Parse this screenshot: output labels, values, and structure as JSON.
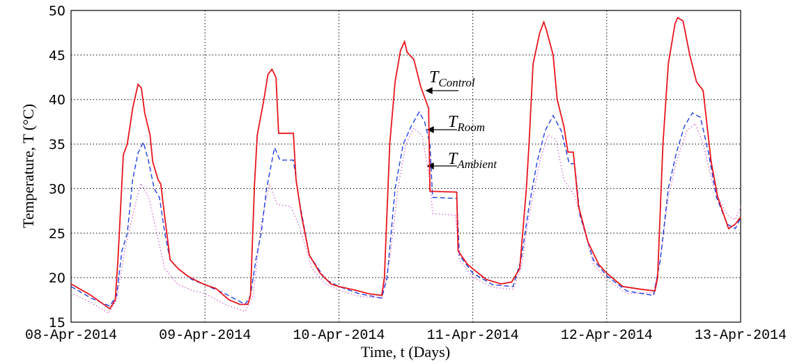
{
  "chart_data": {
    "type": "line",
    "xlabel": "Time, t (Days)",
    "ylabel": "Temperature, T (°C)",
    "xlim": [
      0,
      5
    ],
    "ylim": [
      15,
      50
    ],
    "xticks": [
      {
        "value": 0,
        "label": "08-Apr-2014"
      },
      {
        "value": 1,
        "label": "09-Apr-2014"
      },
      {
        "value": 2,
        "label": "10-Apr-2014"
      },
      {
        "value": 3,
        "label": "11-Apr-2014"
      },
      {
        "value": 4,
        "label": "12-Apr-2014"
      },
      {
        "value": 5,
        "label": "13-Apr-2014"
      }
    ],
    "yticks": [
      15,
      20,
      25,
      30,
      35,
      40,
      45,
      50
    ],
    "grid": true,
    "annotations": [
      {
        "symbol": "T",
        "subscript": "Control"
      },
      {
        "symbol": "T",
        "subscript": "Room"
      },
      {
        "symbol": "T",
        "subscript": "Ambient"
      }
    ],
    "series": [
      {
        "name": "Control",
        "color": "#e8141c",
        "dash": "solid",
        "x": [
          0,
          0.15,
          0.29,
          0.33,
          0.35,
          0.39,
          0.42,
          0.46,
          0.5,
          0.525,
          0.55,
          0.59,
          0.61,
          0.65,
          0.67,
          0.69,
          0.74,
          0.8,
          0.87,
          0.93,
          1.0,
          1.08,
          1.18,
          1.26,
          1.32,
          1.34,
          1.37,
          1.39,
          1.44,
          1.47,
          1.5,
          1.53,
          1.55,
          1.66,
          1.68,
          1.72,
          1.78,
          1.86,
          1.94,
          2.0,
          2.12,
          2.22,
          2.32,
          2.34,
          2.38,
          2.42,
          2.46,
          2.49,
          2.51,
          2.56,
          2.61,
          2.67,
          2.68,
          2.88,
          2.89,
          2.96,
          3.0,
          3.1,
          3.21,
          3.29,
          3.35,
          3.4,
          3.42,
          3.45,
          3.5,
          3.53,
          3.55,
          3.6,
          3.63,
          3.68,
          3.71,
          3.75,
          3.79,
          3.86,
          3.94,
          4.0,
          4.12,
          4.25,
          4.36,
          4.38,
          4.42,
          4.46,
          4.51,
          4.53,
          4.57,
          4.62,
          4.67,
          4.72,
          4.78,
          4.83,
          4.91,
          4.96,
          5.0
        ],
        "values": [
          19.3,
          18,
          16.5,
          17.5,
          22,
          33.8,
          35,
          39,
          41.7,
          41.3,
          38.5,
          36,
          33,
          31,
          30.5,
          28,
          22,
          21,
          20.2,
          19.7,
          19.2,
          18.8,
          17.5,
          17,
          17,
          18,
          30.5,
          36,
          40,
          42.8,
          43.4,
          42.5,
          36.2,
          36.2,
          31,
          27,
          22.5,
          20.5,
          19.3,
          19,
          18.6,
          18.2,
          18,
          20,
          35,
          42,
          45.5,
          46.5,
          45.3,
          44.5,
          41.5,
          39,
          29.7,
          29.6,
          23,
          21.5,
          21,
          19.8,
          19.3,
          19.5,
          21,
          30,
          35,
          44,
          47.5,
          48.7,
          47.8,
          45,
          40,
          37,
          34.1,
          34.1,
          28,
          24,
          21.5,
          20.5,
          19,
          18.7,
          18.5,
          20,
          35,
          44,
          48.5,
          49.2,
          48.8,
          45,
          42,
          41,
          33,
          29,
          25.5,
          26,
          26.8
        ]
      },
      {
        "name": "Room",
        "color": "#1f3fe0",
        "dash": "dashed",
        "x": [
          0,
          0.15,
          0.29,
          0.34,
          0.38,
          0.42,
          0.46,
          0.5,
          0.54,
          0.58,
          0.62,
          0.66,
          0.7,
          0.74,
          0.8,
          0.9,
          1.0,
          1.15,
          1.3,
          1.34,
          1.38,
          1.42,
          1.46,
          1.52,
          1.56,
          1.66,
          1.7,
          1.78,
          1.9,
          2.0,
          2.15,
          2.32,
          2.36,
          2.42,
          2.48,
          2.54,
          2.6,
          2.64,
          2.68,
          2.7,
          2.88,
          2.9,
          3.0,
          3.15,
          3.3,
          3.36,
          3.42,
          3.48,
          3.54,
          3.6,
          3.66,
          3.72,
          3.76,
          3.8,
          3.9,
          4.0,
          4.15,
          4.35,
          4.4,
          4.46,
          4.52,
          4.58,
          4.64,
          4.7,
          4.76,
          4.82,
          4.9,
          4.96,
          5.0
        ],
        "values": [
          19,
          17.7,
          16.8,
          18,
          23,
          25,
          31,
          34,
          35.2,
          33,
          30,
          29,
          25,
          22,
          21,
          19.8,
          19.2,
          18.2,
          17,
          18,
          22,
          25,
          30,
          34.6,
          33.2,
          33.2,
          29,
          22.5,
          19.8,
          19,
          18.2,
          17.7,
          20,
          30,
          35,
          37,
          38.6,
          37.5,
          35,
          29,
          28.9,
          22.5,
          20.5,
          19.2,
          19,
          22,
          28,
          33,
          36.5,
          38.2,
          36.5,
          32.8,
          32.8,
          27,
          22,
          20.2,
          18.5,
          18,
          22,
          30,
          34,
          37,
          38.5,
          38,
          34,
          29,
          26,
          25.5,
          26.7
        ]
      },
      {
        "name": "Ambient",
        "color": "#d070d0",
        "dash": "dotted",
        "x": [
          0,
          0.15,
          0.28,
          0.34,
          0.4,
          0.46,
          0.52,
          0.58,
          0.64,
          0.7,
          0.8,
          0.9,
          1.0,
          1.15,
          1.3,
          1.36,
          1.42,
          1.48,
          1.54,
          1.64,
          1.7,
          1.8,
          1.9,
          2.0,
          2.15,
          2.32,
          2.38,
          2.44,
          2.5,
          2.56,
          2.62,
          2.68,
          2.7,
          2.87,
          2.9,
          3.0,
          3.15,
          3.3,
          3.36,
          3.42,
          3.5,
          3.56,
          3.62,
          3.68,
          3.76,
          3.82,
          3.9,
          4.0,
          4.15,
          4.35,
          4.4,
          4.46,
          4.52,
          4.6,
          4.66,
          4.72,
          4.8,
          4.9,
          4.96,
          5.0
        ],
        "values": [
          18.3,
          17.2,
          16,
          17.5,
          23,
          27,
          30.6,
          29,
          25,
          21,
          19.2,
          18.6,
          18.2,
          17,
          16.2,
          18,
          26,
          30.5,
          28.2,
          28,
          26,
          21,
          19.3,
          18.6,
          17.9,
          17.7,
          22,
          30,
          35,
          36.8,
          36,
          31,
          27.2,
          27,
          22,
          20,
          18.9,
          18.7,
          21,
          27,
          33,
          36,
          35.5,
          31,
          29.2,
          26,
          21.5,
          19.8,
          18.2,
          18.3,
          22,
          29,
          33,
          36.5,
          37.3,
          35,
          30,
          27,
          26.5,
          28
        ]
      }
    ]
  }
}
